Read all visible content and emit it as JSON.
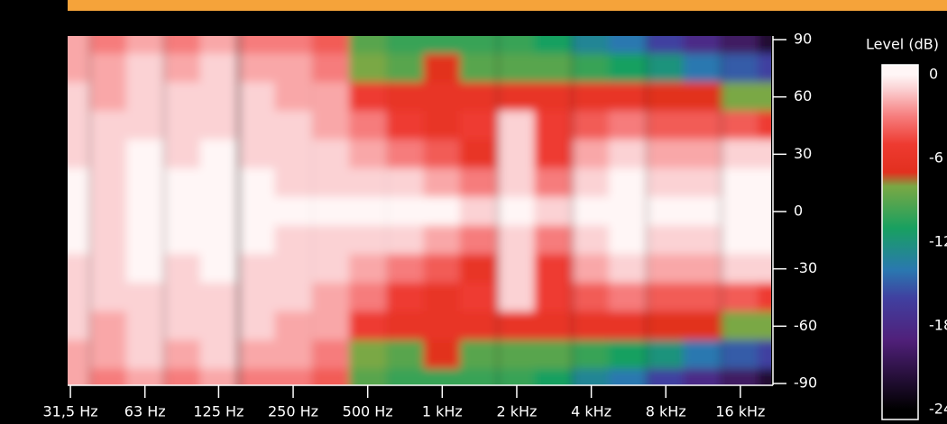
{
  "chart_data": {
    "type": "heatmap",
    "x": [
      31.5,
      45,
      63,
      90,
      125,
      180,
      250,
      355,
      500,
      710,
      1000,
      1400,
      2000,
      2800,
      4000,
      5600,
      8000,
      11200,
      16000,
      22400
    ],
    "y": [
      90,
      75,
      60,
      45,
      30,
      15,
      0,
      -15,
      -30,
      -45,
      -60,
      -75,
      -90
    ],
    "z": [
      [
        -2,
        -3,
        -2,
        -3,
        -2,
        -3,
        -3,
        -4,
        -9,
        -10,
        -10,
        -10,
        -10,
        -11,
        -13,
        -14,
        -16,
        -18,
        -20,
        -22
      ],
      [
        -2,
        -2,
        -1,
        -2,
        -1,
        -2,
        -2,
        -3,
        -8,
        -9,
        -7,
        -9,
        -9,
        -9,
        -10,
        -11,
        -12,
        -14,
        -15,
        -16
      ],
      [
        -1,
        -2,
        -1,
        -1,
        -1,
        -1,
        -2,
        -2,
        -5,
        -6,
        -6,
        -6,
        -6,
        -6,
        -6,
        -6,
        -7,
        -7,
        -8,
        -8
      ],
      [
        -1,
        -1,
        -1,
        -1,
        -1,
        -1,
        -1,
        -2,
        -3,
        -5,
        -6,
        -5,
        -1,
        -5,
        -4,
        -3,
        -4,
        -4,
        -4,
        -5
      ],
      [
        -1,
        -1,
        0,
        -1,
        0,
        -1,
        -1,
        -1,
        -2,
        -3,
        -4,
        -6,
        -1,
        -5,
        -2,
        -1,
        -2,
        -2,
        -1,
        -1
      ],
      [
        0,
        -1,
        0,
        0,
        0,
        0,
        -1,
        -1,
        -1,
        -1,
        -2,
        -3,
        -1,
        -3,
        -1,
        0,
        -1,
        -1,
        0,
        0
      ],
      [
        0,
        -1,
        0,
        0,
        0,
        0,
        0,
        0,
        0,
        0,
        0,
        -1,
        0,
        -1,
        0,
        0,
        0,
        0,
        0,
        0
      ],
      [
        0,
        -1,
        0,
        0,
        0,
        0,
        -1,
        -1,
        -1,
        -1,
        -2,
        -3,
        -1,
        -3,
        -1,
        0,
        -1,
        -1,
        0,
        0
      ],
      [
        -1,
        -1,
        0,
        -1,
        0,
        -1,
        -1,
        -1,
        -2,
        -3,
        -4,
        -6,
        -1,
        -5,
        -2,
        -1,
        -2,
        -2,
        -1,
        -1
      ],
      [
        -1,
        -1,
        -1,
        -1,
        -1,
        -1,
        -1,
        -2,
        -3,
        -5,
        -6,
        -5,
        -1,
        -5,
        -4,
        -3,
        -4,
        -4,
        -4,
        -5
      ],
      [
        -1,
        -2,
        -1,
        -1,
        -1,
        -1,
        -2,
        -2,
        -5,
        -6,
        -6,
        -6,
        -6,
        -6,
        -6,
        -6,
        -7,
        -7,
        -8,
        -8
      ],
      [
        -2,
        -2,
        -1,
        -2,
        -1,
        -2,
        -2,
        -3,
        -8,
        -9,
        -7,
        -9,
        -9,
        -9,
        -10,
        -11,
        -12,
        -14,
        -15,
        -16
      ],
      [
        -2,
        -3,
        -2,
        -3,
        -2,
        -3,
        -3,
        -4,
        -9,
        -10,
        -10,
        -10,
        -10,
        -11,
        -13,
        -14,
        -16,
        -18,
        -20,
        -22
      ]
    ],
    "xlim": [
      30.7,
      21300
    ],
    "log_x": true,
    "xticks": [
      {
        "value": 31.5,
        "label": "31,5 Hz"
      },
      {
        "value": 63,
        "label": "63 Hz"
      },
      {
        "value": 125,
        "label": "125 Hz"
      },
      {
        "value": 250,
        "label": "250 Hz"
      },
      {
        "value": 500,
        "label": "500 Hz"
      },
      {
        "value": 1000,
        "label": "1 kHz"
      },
      {
        "value": 2000,
        "label": "2 kHz"
      },
      {
        "value": 4000,
        "label": "4 kHz"
      },
      {
        "value": 8000,
        "label": "8 kHz"
      },
      {
        "value": 16000,
        "label": "16 kHz"
      }
    ],
    "ylim": [
      -90,
      90
    ],
    "yticks": [
      90,
      60,
      30,
      0,
      -30,
      -60,
      -90
    ],
    "colorbar_title": "Level (dB)",
    "zlim": [
      0,
      -24
    ],
    "zticks": [
      0,
      -6,
      -12,
      -18,
      -24
    ],
    "colorscale": [
      {
        "value": 0,
        "color": "#fff6f6"
      },
      {
        "value": -1,
        "color": "#fbd2d4"
      },
      {
        "value": -3,
        "color": "#f67c7c"
      },
      {
        "value": -5,
        "color": "#ee3a30"
      },
      {
        "value": -7,
        "color": "#e2301f"
      },
      {
        "value": -8,
        "color": "#7aa844"
      },
      {
        "value": -11,
        "color": "#18a060"
      },
      {
        "value": -14,
        "color": "#2a78b0"
      },
      {
        "value": -16,
        "color": "#4040a0"
      },
      {
        "value": -19,
        "color": "#50207a"
      },
      {
        "value": -24,
        "color": "#000000"
      }
    ]
  }
}
